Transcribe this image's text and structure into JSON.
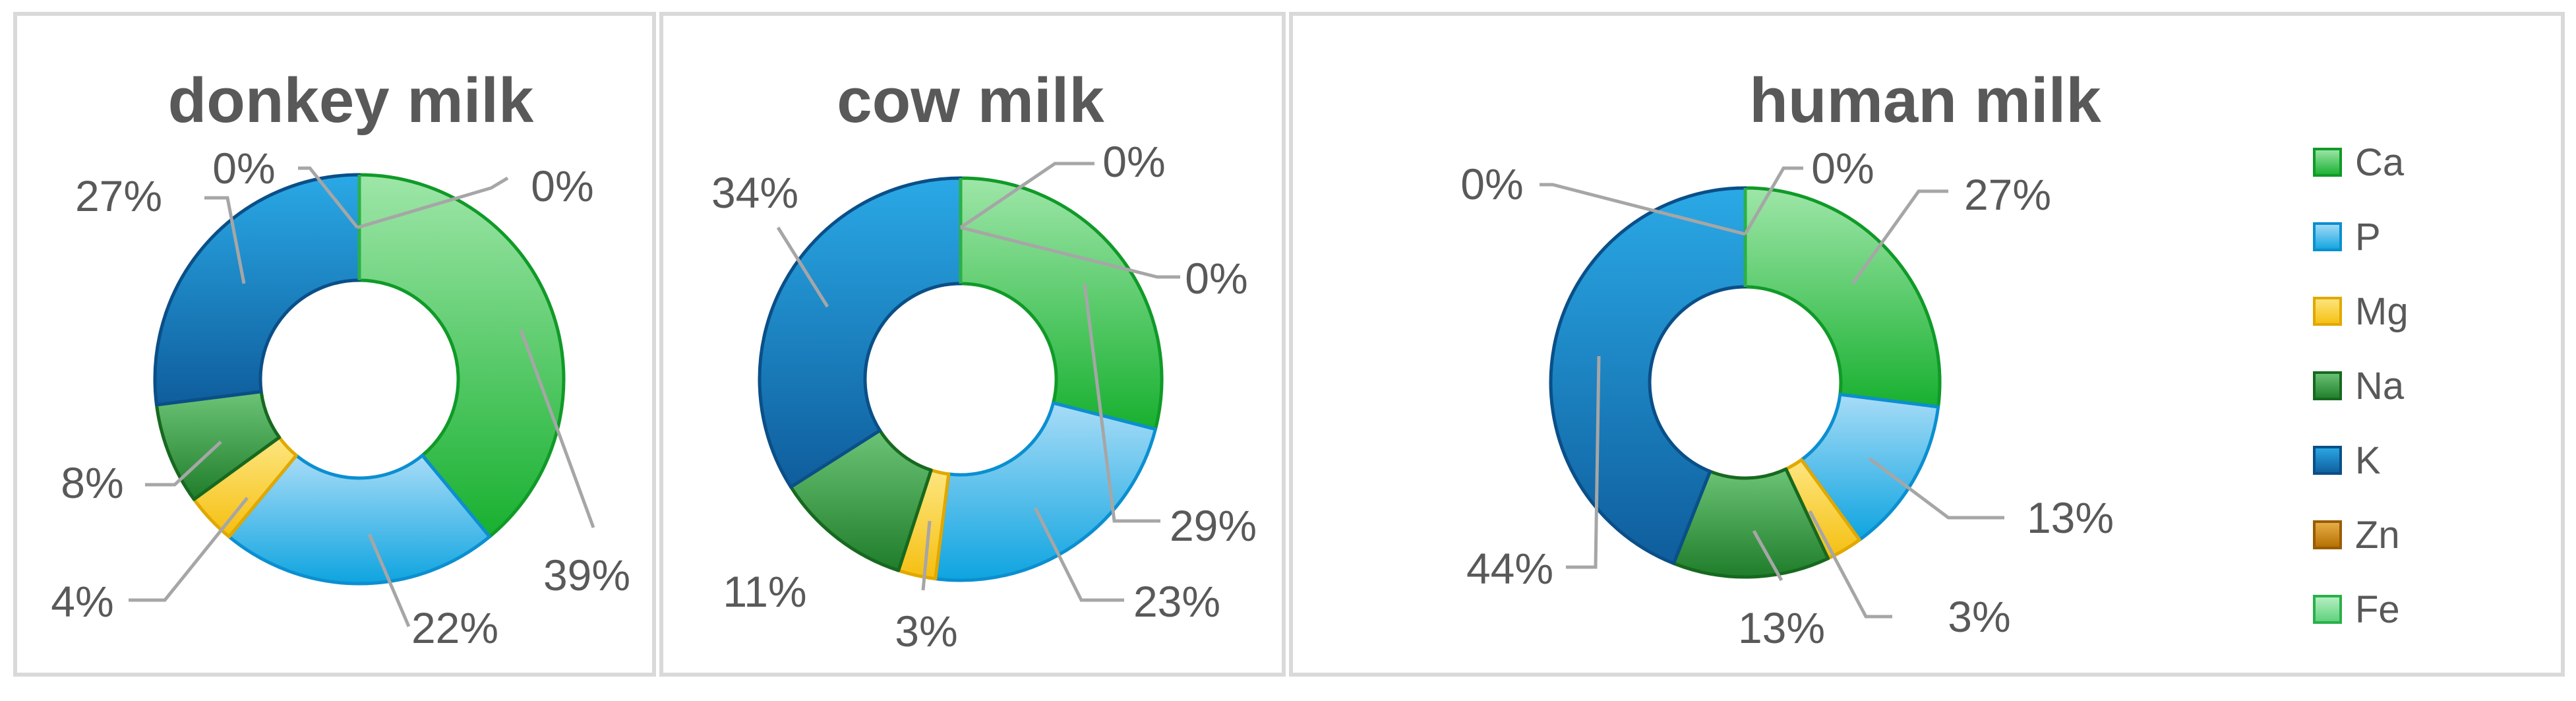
{
  "chart_data": [
    {
      "type": "donut",
      "title": "donkey milk",
      "categories": [
        "Ca",
        "P",
        "Mg",
        "Na",
        "K",
        "Zn",
        "Fe"
      ],
      "values": [
        39,
        22,
        4,
        8,
        27,
        0,
        0
      ],
      "labels": [
        "39%",
        "22%",
        "4%",
        "8%",
        "27%",
        "0%",
        "0%"
      ]
    },
    {
      "type": "donut",
      "title": "cow milk",
      "categories": [
        "Ca",
        "P",
        "Mg",
        "Na",
        "K",
        "Zn",
        "Fe"
      ],
      "values": [
        29,
        23,
        3,
        11,
        34,
        0,
        0
      ],
      "labels": [
        "29%",
        "23%",
        "3%",
        "11%",
        "34%",
        "0%",
        "0%"
      ]
    },
    {
      "type": "donut",
      "title": "human milk",
      "categories": [
        "Ca",
        "P",
        "Mg",
        "Na",
        "K",
        "Zn",
        "Fe"
      ],
      "values": [
        27,
        13,
        3,
        13,
        44,
        0,
        0
      ],
      "labels": [
        "27%",
        "13%",
        "3%",
        "13%",
        "44%",
        "0%",
        "0%"
      ]
    }
  ],
  "legend": {
    "placement": "right",
    "items": [
      {
        "name": "Ca",
        "color": "#1db33c"
      },
      {
        "name": "P",
        "color": "#1aa3e8"
      },
      {
        "name": "Mg",
        "color": "#f5c21b"
      },
      {
        "name": "Na",
        "color": "#2e8b3a"
      },
      {
        "name": "K",
        "color": "#1565a8"
      },
      {
        "name": "Zn",
        "color": "#c9820a"
      },
      {
        "name": "Fe",
        "color": "#5fd07a"
      }
    ]
  },
  "colors": {
    "Ca": [
      "#9ee6a8",
      "#18b030",
      "#109a28"
    ],
    "P": [
      "#a8dcf7",
      "#0ea4e0",
      "#0b8fd0"
    ],
    "Mg": [
      "#fde680",
      "#f5bf10",
      "#e0a800"
    ],
    "Na": [
      "#6cc477",
      "#1f7d2a",
      "#17691f"
    ],
    "K": [
      "#2aa9e6",
      "#0f5d9c",
      "#0a4f88"
    ],
    "Zn": [
      "#e8b04a",
      "#b56e00",
      "#9a5c00"
    ],
    "Fe": [
      "#b8f0c4",
      "#5cd07a",
      "#2ab04a"
    ]
  }
}
